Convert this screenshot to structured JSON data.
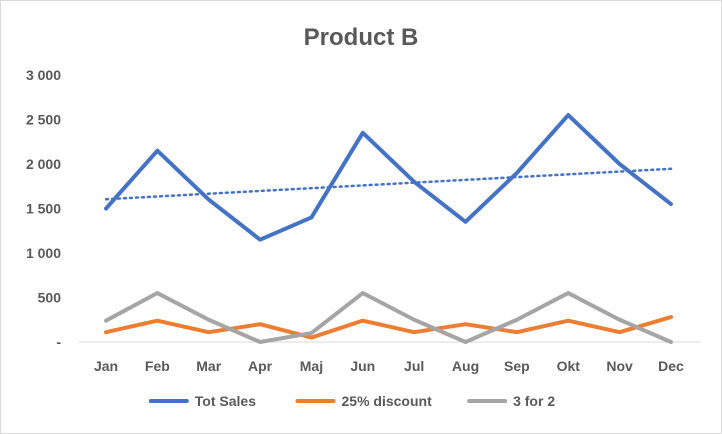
{
  "chart_data": {
    "type": "line",
    "title": "Product B",
    "xlabel": "",
    "ylabel": "",
    "categories": [
      "Jan",
      "Feb",
      "Mar",
      "Apr",
      "Maj",
      "Jun",
      "Jul",
      "Aug",
      "Sep",
      "Okt",
      "Nov",
      "Dec"
    ],
    "y_ticks": [
      "-",
      "500",
      "1 000",
      "1 500",
      "2 000",
      "2 500",
      "3 000"
    ],
    "ylim": [
      0,
      3000
    ],
    "grid": false,
    "legend_position": "bottom",
    "series": [
      {
        "name": "Tot Sales",
        "color": "#4472C4",
        "values": [
          1500,
          2150,
          1600,
          1150,
          1400,
          2350,
          1800,
          1350,
          1900,
          2550,
          2000,
          1550
        ]
      },
      {
        "name": "25% discount",
        "color": "#ED7D31",
        "values": [
          110,
          240,
          110,
          200,
          50,
          240,
          110,
          200,
          110,
          240,
          110,
          280
        ]
      },
      {
        "name": "3 for 2",
        "color": "#A5A5A5",
        "values": [
          240,
          550,
          250,
          0,
          100,
          550,
          250,
          0,
          250,
          550,
          250,
          0
        ]
      }
    ],
    "trendline": {
      "series": "Tot Sales",
      "style": "dotted linear",
      "color": "#4472C4"
    }
  }
}
